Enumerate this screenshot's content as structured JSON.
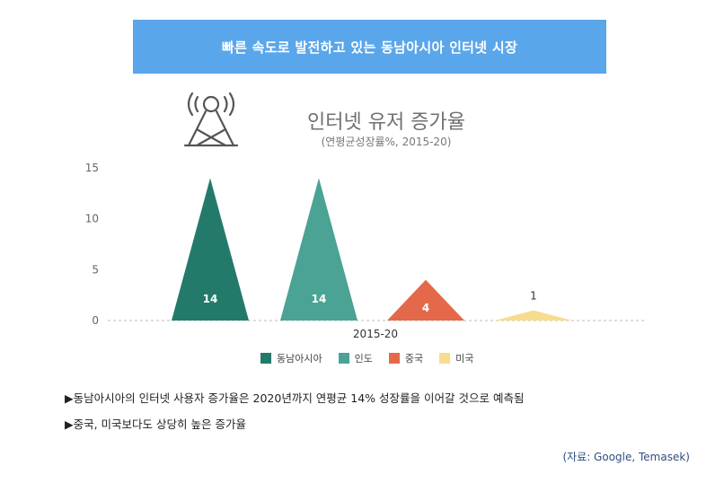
{
  "banner": {
    "title": "빠른 속도로 발전하고 있는 동남아시아 인터넷 시장"
  },
  "chart_data": {
    "type": "bar",
    "title": "인터넷 유저 증가율",
    "subtitle": "(연평균성장률%, 2015-20)",
    "categories": [
      "2015-20"
    ],
    "series": [
      {
        "name": "동남아시아",
        "values": [
          14
        ],
        "color": "#237a6b"
      },
      {
        "name": "인도",
        "values": [
          14
        ],
        "color": "#4aa394"
      },
      {
        "name": "중국",
        "values": [
          4
        ],
        "color": "#e4694a"
      },
      {
        "name": "미국",
        "values": [
          1
        ],
        "color": "#f8dc8e"
      }
    ],
    "y_ticks": [
      "0",
      "5",
      "10",
      "15"
    ],
    "ylim": [
      0,
      15
    ],
    "grid": false,
    "legend": "bottom",
    "data_labels": [
      "14",
      "14",
      "4",
      "1"
    ]
  },
  "notes": [
    "▶동남아시아의 인터넷 사용자 증가율은 2020년까지 연평균 14% 성장률을 이어갈 것으로 예측됨",
    "▶중국, 미국보다도 상당히 높은 증가율"
  ],
  "source": "(자료: Google, Temasek)",
  "icons": {
    "tower": "antenna-tower-icon"
  }
}
